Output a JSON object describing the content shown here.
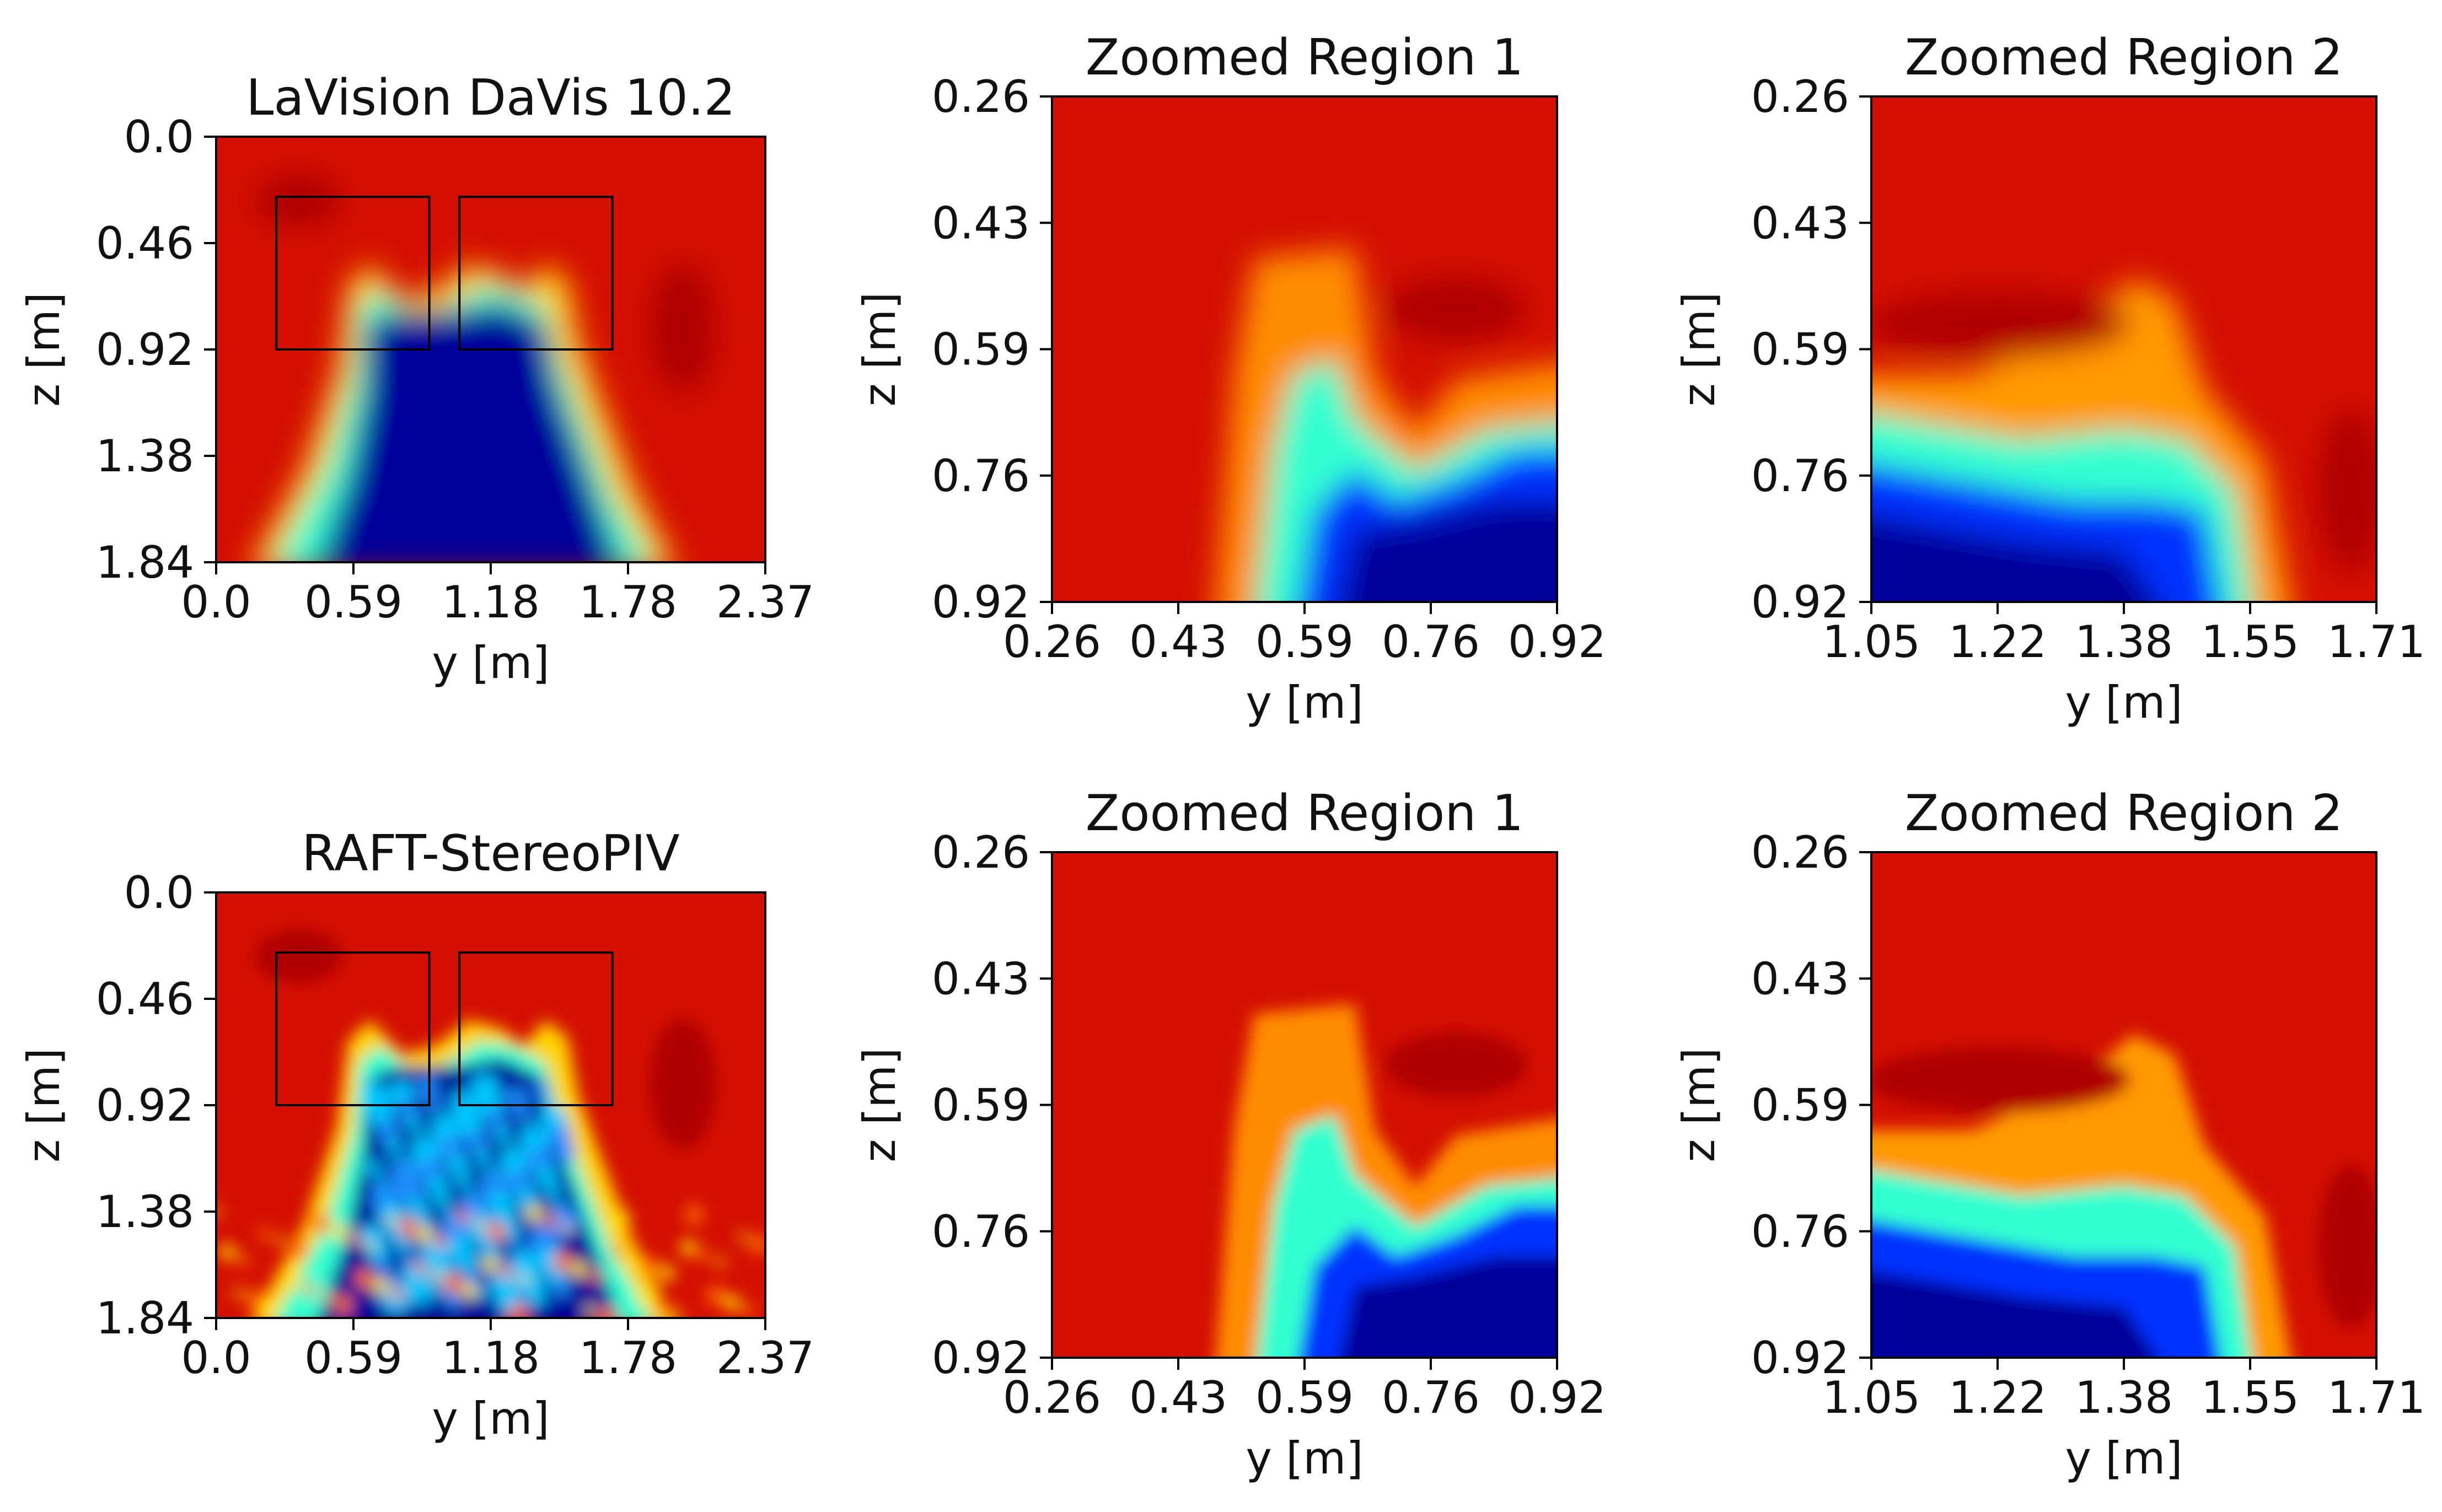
{
  "chart_data": [
    {
      "type": "heatmap",
      "title": "LaVision DaVis 10.2",
      "xlabel": "y [m]",
      "ylabel": "z [m]",
      "xlim": [
        0.0,
        2.37
      ],
      "ylim": [
        1.84,
        0.0
      ],
      "xticks": [
        "0.0",
        "0.59",
        "1.18",
        "1.78",
        "2.37"
      ],
      "yticks": [
        "0.0",
        "0.46",
        "0.92",
        "1.38",
        "1.84"
      ],
      "colormap": "jet",
      "style": "coarse",
      "annotations": [
        {
          "type": "rectangle",
          "label": "Zoomed Region 1",
          "y_range": [
            0.26,
            0.92
          ],
          "z_range": [
            0.26,
            0.92
          ]
        },
        {
          "type": "rectangle",
          "label": "Zoomed Region 2",
          "y_range": [
            1.05,
            1.71
          ],
          "z_range": [
            0.26,
            0.92
          ]
        }
      ]
    },
    {
      "type": "heatmap",
      "title": "Zoomed Region 1",
      "xlabel": "y [m]",
      "ylabel": "z [m]",
      "xlim": [
        0.26,
        0.92
      ],
      "ylim": [
        0.92,
        0.26
      ],
      "xticks": [
        "0.26",
        "0.43",
        "0.59",
        "0.76",
        "0.92"
      ],
      "yticks": [
        "0.26",
        "0.43",
        "0.59",
        "0.76",
        "0.92"
      ],
      "colormap": "jet",
      "style": "coarse"
    },
    {
      "type": "heatmap",
      "title": "Zoomed Region 2",
      "xlabel": "y [m]",
      "ylabel": "z [m]",
      "xlim": [
        1.05,
        1.71
      ],
      "ylim": [
        0.92,
        0.26
      ],
      "xticks": [
        "1.05",
        "1.22",
        "1.38",
        "1.55",
        "1.71"
      ],
      "yticks": [
        "0.26",
        "0.43",
        "0.59",
        "0.76",
        "0.92"
      ],
      "colormap": "jet",
      "style": "coarse"
    },
    {
      "type": "heatmap",
      "title": "RAFT-StereoPIV",
      "xlabel": "y [m]",
      "ylabel": "z [m]",
      "xlim": [
        0.0,
        2.37
      ],
      "ylim": [
        1.84,
        0.0
      ],
      "xticks": [
        "0.0",
        "0.59",
        "1.18",
        "1.78",
        "2.37"
      ],
      "yticks": [
        "0.0",
        "0.46",
        "0.92",
        "1.38",
        "1.84"
      ],
      "colormap": "jet",
      "style": "fine",
      "annotations": [
        {
          "type": "rectangle",
          "label": "Zoomed Region 1",
          "y_range": [
            0.26,
            0.92
          ],
          "z_range": [
            0.26,
            0.92
          ]
        },
        {
          "type": "rectangle",
          "label": "Zoomed Region 2",
          "y_range": [
            1.05,
            1.71
          ],
          "z_range": [
            0.26,
            0.92
          ]
        }
      ]
    },
    {
      "type": "heatmap",
      "title": "Zoomed Region 1",
      "xlabel": "y [m]",
      "ylabel": "z [m]",
      "xlim": [
        0.26,
        0.92
      ],
      "ylim": [
        0.92,
        0.26
      ],
      "xticks": [
        "0.26",
        "0.43",
        "0.59",
        "0.76",
        "0.92"
      ],
      "yticks": [
        "0.26",
        "0.43",
        "0.59",
        "0.76",
        "0.92"
      ],
      "colormap": "jet",
      "style": "fine"
    },
    {
      "type": "heatmap",
      "title": "Zoomed Region 2",
      "xlabel": "y [m]",
      "ylabel": "z [m]",
      "xlim": [
        1.05,
        1.71
      ],
      "ylim": [
        0.92,
        0.26
      ],
      "xticks": [
        "1.05",
        "1.22",
        "1.38",
        "1.55",
        "1.71"
      ],
      "yticks": [
        "0.26",
        "0.43",
        "0.59",
        "0.76",
        "0.92"
      ],
      "colormap": "jet",
      "style": "fine"
    }
  ]
}
